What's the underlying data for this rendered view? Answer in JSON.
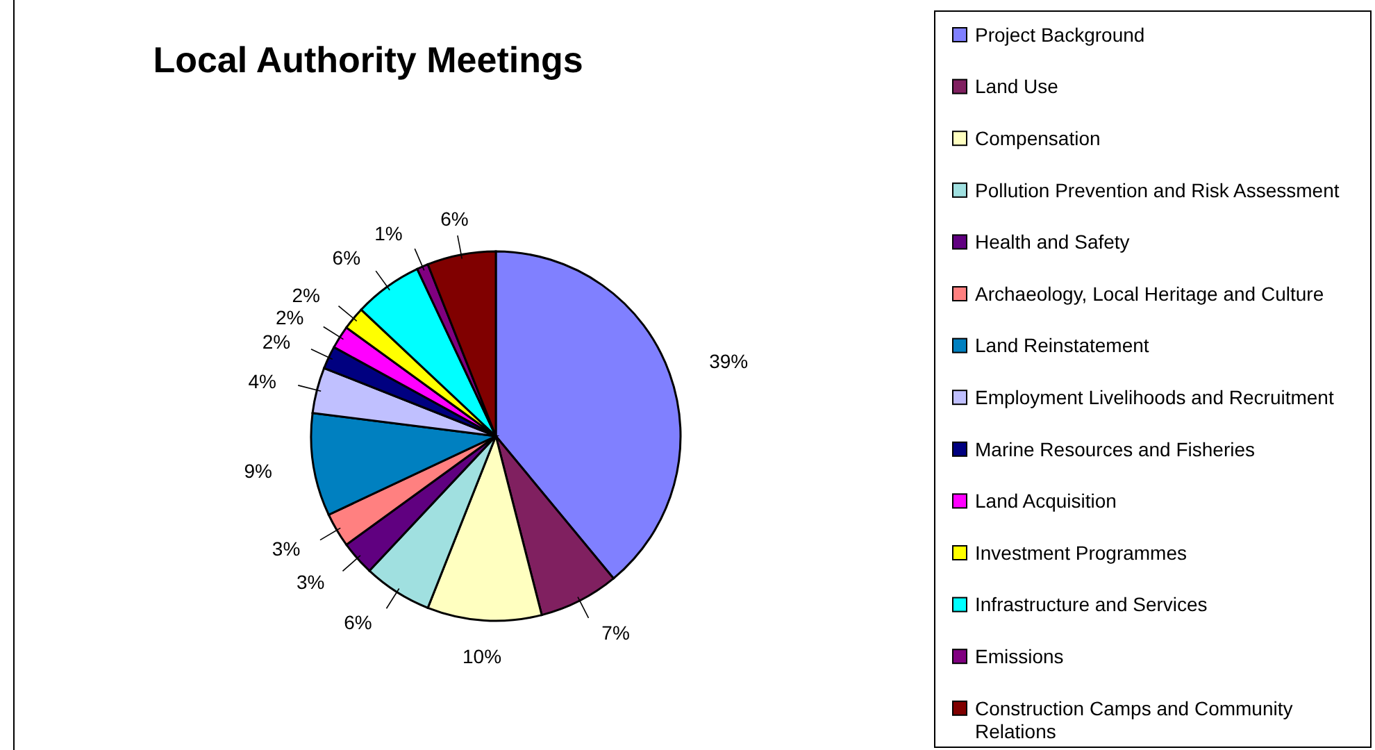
{
  "chart_data": {
    "type": "pie",
    "title": "Local Authority Meetings",
    "categories": [
      "Project Background",
      "Land Use",
      "Compensation",
      "Pollution Prevention and Risk Assessment",
      "Health and Safety",
      "Archaeology, Local Heritage and Culture",
      "Land Reinstatement",
      "Employment Livelihoods and Recruitment",
      "Marine Resources and Fisheries",
      "Land Acquisition",
      "Investment Programmes",
      "Infrastructure and Services",
      "Emissions",
      "Construction Camps and Community Relations"
    ],
    "values": [
      39,
      7,
      10,
      6,
      3,
      3,
      9,
      4,
      2,
      2,
      2,
      6,
      1,
      6
    ],
    "colors": [
      "#8080ff",
      "#802060",
      "#ffffc0",
      "#a0e0e0",
      "#600080",
      "#ff8080",
      "#0080c0",
      "#c0c0ff",
      "#000080",
      "#ff00ff",
      "#ffff00",
      "#00ffff",
      "#800080",
      "#800000"
    ],
    "value_labels": [
      "39%",
      "7%",
      "10%",
      "6%",
      "3%",
      "3%",
      "9%",
      "4%",
      "2%",
      "2%",
      "2%",
      "6%",
      "1%",
      "6%"
    ],
    "legend": "right"
  }
}
